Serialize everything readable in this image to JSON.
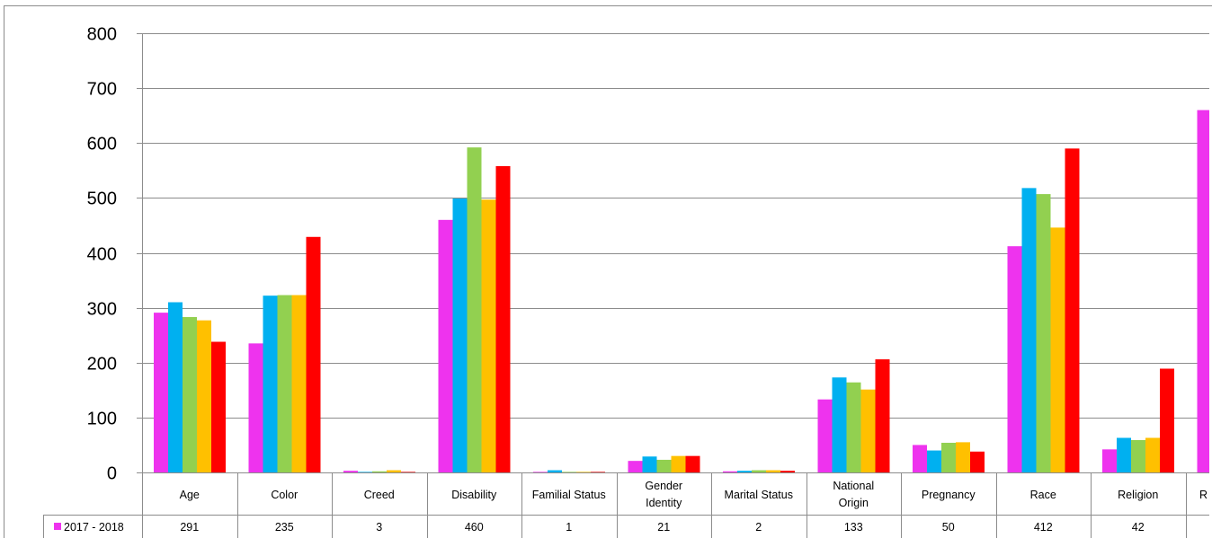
{
  "chart_data": {
    "type": "bar",
    "categories": [
      "Age",
      "Color",
      "Creed",
      "Disability",
      "Familial Status",
      "Gender Identity",
      "Marital Status",
      "National Origin",
      "Pregnancy",
      "Race",
      "Religion",
      "R"
    ],
    "series": [
      {
        "name": "2017 - 2018",
        "color": "#ee33ee",
        "values": [
          291,
          235,
          3,
          460,
          1,
          21,
          2,
          133,
          50,
          412,
          42,
          660
        ]
      },
      {
        "name": "",
        "color": "#00b0f0",
        "values": [
          310,
          322,
          1,
          499,
          4,
          29,
          3,
          173,
          40,
          518,
          63,
          null
        ]
      },
      {
        "name": "",
        "color": "#92d050",
        "values": [
          283,
          323,
          2,
          592,
          1,
          23,
          4,
          164,
          54,
          507,
          59,
          null
        ]
      },
      {
        "name": "",
        "color": "#ffc000",
        "values": [
          277,
          323,
          4,
          497,
          1,
          30,
          4,
          151,
          55,
          446,
          63,
          null
        ]
      },
      {
        "name": "",
        "color": "#ff0000",
        "values": [
          238,
          429,
          1,
          558,
          1,
          30,
          3,
          206,
          38,
          590,
          189,
          null
        ]
      }
    ],
    "table_rows": [
      {
        "label": "2017 - 2018",
        "values": [
          "291",
          "235",
          "3",
          "460",
          "1",
          "21",
          "2",
          "133",
          "50",
          "412",
          "42",
          ""
        ]
      }
    ],
    "yticks": [
      "0",
      "100",
      "200",
      "300",
      "400",
      "500",
      "600",
      "700",
      "800"
    ],
    "ylim": [
      0,
      800
    ],
    "grid": true,
    "title": "",
    "xlabel": "",
    "ylabel": ""
  }
}
